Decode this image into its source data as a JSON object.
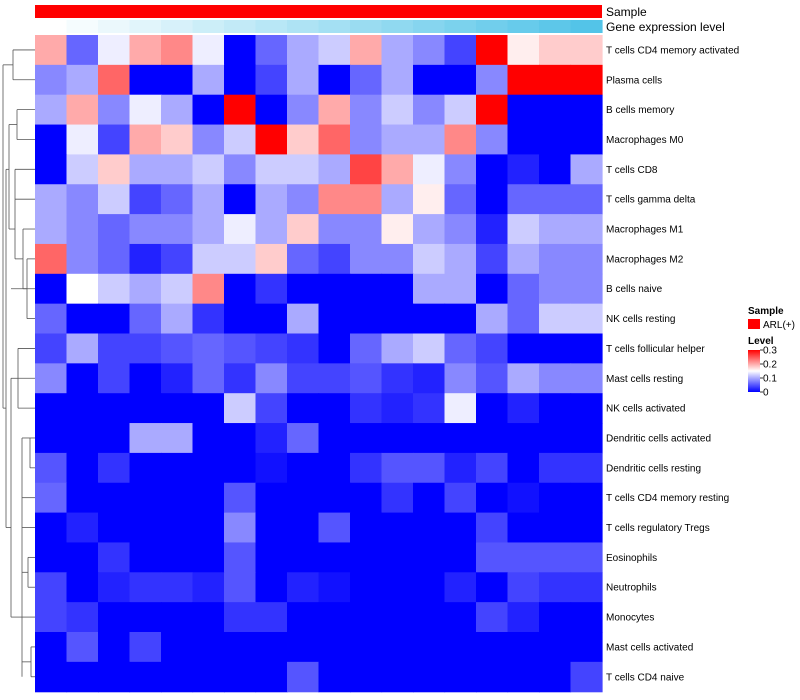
{
  "chart_data": {
    "type": "heatmap",
    "annotations": {
      "sample_label": "Sample",
      "expression_label": "Gene expression level",
      "sample_color": "#ff0000",
      "expression_gradient": [
        "#ffffff",
        "#53c4e8"
      ]
    },
    "rows": [
      "T cells CD4 memory activated",
      "Plasma cells",
      "B cells memory",
      "Macrophages M0",
      "T cells CD8",
      "T cells gamma delta",
      "Macrophages M1",
      "Macrophages M2",
      "B cells naive",
      "NK cells resting",
      "T cells follicular helper",
      "Mast cells resting",
      "NK cells activated",
      "Dendritic cells activated",
      "Dendritic cells resting",
      "T cells CD4 memory resting",
      "T cells regulatory  Tregs",
      "Eosinophils",
      "Neutrophils",
      "Monocytes",
      "Mast cells activated",
      "T cells CD4 naive"
    ],
    "n_columns": 18,
    "values": [
      [
        0.2,
        0.06,
        0.14,
        0.2,
        0.22,
        0.14,
        0.0,
        0.06,
        0.1,
        0.12,
        0.2,
        0.1,
        0.08,
        0.04,
        0.3,
        0.16,
        0.18,
        0.18
      ],
      [
        0.08,
        0.1,
        0.24,
        0.0,
        0.0,
        0.1,
        0.0,
        0.04,
        0.1,
        0.0,
        0.06,
        0.1,
        0.0,
        0.0,
        0.08,
        0.3,
        0.3,
        0.3
      ],
      [
        0.1,
        0.2,
        0.08,
        0.14,
        0.1,
        0.0,
        0.3,
        0.0,
        0.08,
        0.2,
        0.08,
        0.12,
        0.08,
        0.12,
        0.3,
        0.0,
        0.0,
        0.0
      ],
      [
        0.0,
        0.14,
        0.04,
        0.2,
        0.18,
        0.08,
        0.12,
        0.3,
        0.18,
        0.24,
        0.08,
        0.1,
        0.1,
        0.22,
        0.08,
        0.0,
        0.0,
        0.0
      ],
      [
        0.0,
        0.12,
        0.18,
        0.1,
        0.1,
        0.12,
        0.08,
        0.12,
        0.12,
        0.1,
        0.26,
        0.2,
        0.14,
        0.08,
        0.0,
        0.02,
        0.0,
        0.1
      ],
      [
        0.1,
        0.08,
        0.12,
        0.04,
        0.06,
        0.1,
        0.0,
        0.1,
        0.08,
        0.22,
        0.22,
        0.1,
        0.16,
        0.06,
        0.0,
        0.06,
        0.06,
        0.06
      ],
      [
        0.1,
        0.08,
        0.06,
        0.08,
        0.08,
        0.1,
        0.14,
        0.1,
        0.18,
        0.08,
        0.08,
        0.16,
        0.1,
        0.08,
        0.02,
        0.12,
        0.1,
        0.1
      ],
      [
        0.24,
        0.08,
        0.06,
        0.02,
        0.04,
        0.12,
        0.12,
        0.18,
        0.06,
        0.04,
        0.08,
        0.08,
        0.12,
        0.1,
        0.04,
        0.1,
        0.08,
        0.08
      ],
      [
        0.0,
        0.15,
        0.12,
        0.1,
        0.12,
        0.22,
        0.0,
        0.03,
        0.0,
        0.0,
        0.0,
        0.0,
        0.1,
        0.1,
        0.0,
        0.06,
        0.08,
        0.08
      ],
      [
        0.06,
        0.0,
        0.0,
        0.06,
        0.1,
        0.03,
        0.0,
        0.0,
        0.1,
        0.0,
        0.0,
        0.0,
        0.0,
        0.0,
        0.1,
        0.06,
        0.12,
        0.12
      ],
      [
        0.04,
        0.1,
        0.04,
        0.04,
        0.05,
        0.06,
        0.05,
        0.04,
        0.03,
        0.0,
        0.06,
        0.1,
        0.12,
        0.06,
        0.04,
        0.0,
        0.0,
        0.0
      ],
      [
        0.08,
        0.0,
        0.04,
        0.0,
        0.02,
        0.06,
        0.03,
        0.08,
        0.04,
        0.04,
        0.05,
        0.03,
        0.02,
        0.08,
        0.05,
        0.1,
        0.08,
        0.08
      ],
      [
        0.0,
        0.0,
        0.0,
        0.0,
        0.0,
        0.0,
        0.12,
        0.04,
        0.0,
        0.0,
        0.03,
        0.02,
        0.03,
        0.14,
        0.0,
        0.02,
        0.0,
        0.0
      ],
      [
        0.0,
        0.0,
        0.0,
        0.1,
        0.1,
        0.0,
        0.0,
        0.02,
        0.06,
        0.0,
        0.0,
        0.0,
        0.0,
        0.0,
        0.0,
        0.0,
        0.0,
        0.0
      ],
      [
        0.05,
        0.0,
        0.03,
        0.0,
        0.0,
        0.0,
        0.0,
        0.01,
        0.0,
        0.0,
        0.03,
        0.05,
        0.05,
        0.02,
        0.04,
        0.0,
        0.03,
        0.03
      ],
      [
        0.06,
        0.0,
        0.0,
        0.0,
        0.0,
        0.0,
        0.05,
        0.0,
        0.0,
        0.0,
        0.0,
        0.03,
        0.0,
        0.04,
        0.0,
        0.01,
        0.0,
        0.0
      ],
      [
        0.0,
        0.02,
        0.0,
        0.0,
        0.0,
        0.0,
        0.08,
        0.0,
        0.0,
        0.05,
        0.0,
        0.0,
        0.0,
        0.0,
        0.04,
        0.0,
        0.0,
        0.0
      ],
      [
        0.0,
        0.0,
        0.03,
        0.0,
        0.0,
        0.0,
        0.05,
        0.0,
        0.0,
        0.0,
        0.0,
        0.0,
        0.0,
        0.0,
        0.05,
        0.05,
        0.05,
        0.05
      ],
      [
        0.04,
        0.0,
        0.02,
        0.03,
        0.03,
        0.02,
        0.05,
        0.0,
        0.02,
        0.01,
        0.0,
        0.0,
        0.0,
        0.02,
        0.0,
        0.04,
        0.03,
        0.03
      ],
      [
        0.04,
        0.03,
        0.0,
        0.0,
        0.0,
        0.0,
        0.03,
        0.03,
        0.0,
        0.0,
        0.0,
        0.0,
        0.0,
        0.0,
        0.04,
        0.02,
        0.0,
        0.0
      ],
      [
        0.0,
        0.05,
        0.0,
        0.04,
        0.0,
        0.0,
        0.0,
        0.0,
        0.0,
        0.0,
        0.0,
        0.0,
        0.0,
        0.0,
        0.0,
        0.0,
        0.0,
        0.0
      ],
      [
        0.0,
        0.0,
        0.0,
        0.0,
        0.0,
        0.0,
        0.0,
        0.0,
        0.05,
        0.0,
        0.0,
        0.0,
        0.0,
        0.0,
        0.0,
        0.0,
        0.0,
        0.04
      ]
    ],
    "color_scale": {
      "min": 0,
      "mid": 0.15,
      "max": 0.3,
      "low": "#0000ff",
      "midColor": "#ffffff",
      "high": "#ff0000"
    },
    "legend": {
      "sample_title": "Sample",
      "sample_entry": "ARL(+)",
      "level_title": "Level",
      "level_ticks": [
        0.3,
        0.2,
        0.1,
        0
      ],
      "level_tick_labels": [
        "0.3",
        "0.2",
        "0.1",
        "0"
      ]
    }
  }
}
